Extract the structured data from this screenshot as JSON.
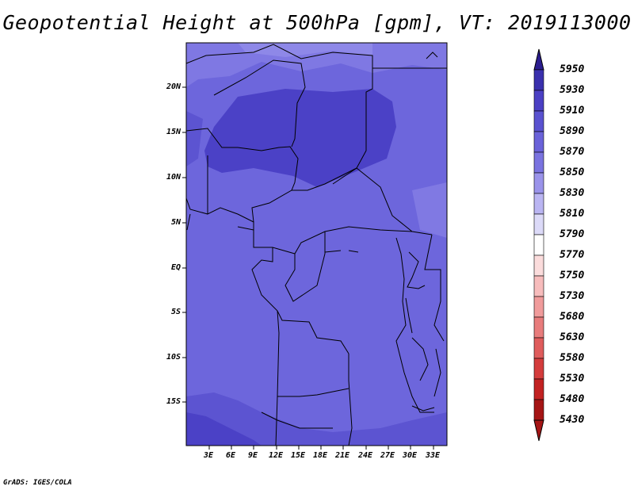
{
  "title": "Geopotential Height at 500hPa [gpm], VT: 2019113000",
  "credit": "GrADS: IGES/COLA",
  "map": {
    "lat_labels": [
      "20N",
      "15N",
      "10N",
      "5N",
      "EQ",
      "5S",
      "10S",
      "15S"
    ],
    "lon_labels": [
      "3E",
      "6E",
      "9E",
      "12E",
      "15E",
      "18E",
      "21E",
      "24E",
      "27E",
      "30E",
      "33E"
    ]
  },
  "colorbar": {
    "levels": [
      "5950",
      "5930",
      "5910",
      "5890",
      "5870",
      "5850",
      "5830",
      "5810",
      "5790",
      "5770",
      "5750",
      "5730",
      "5680",
      "5630",
      "5580",
      "5530",
      "5480",
      "5430"
    ],
    "colors": [
      "#2b1d8f",
      "#3a30ad",
      "#4b40c4",
      "#5a52d0",
      "#6a62d9",
      "#7a73e0",
      "#9a93ea",
      "#bab5f2",
      "#dcdaf8",
      "#ffffff",
      "#fbdcdc",
      "#f7bcbc",
      "#f09b9b",
      "#e87c7c",
      "#df5c5c",
      "#d43c3c",
      "#c22222",
      "#a51515"
    ]
  }
}
